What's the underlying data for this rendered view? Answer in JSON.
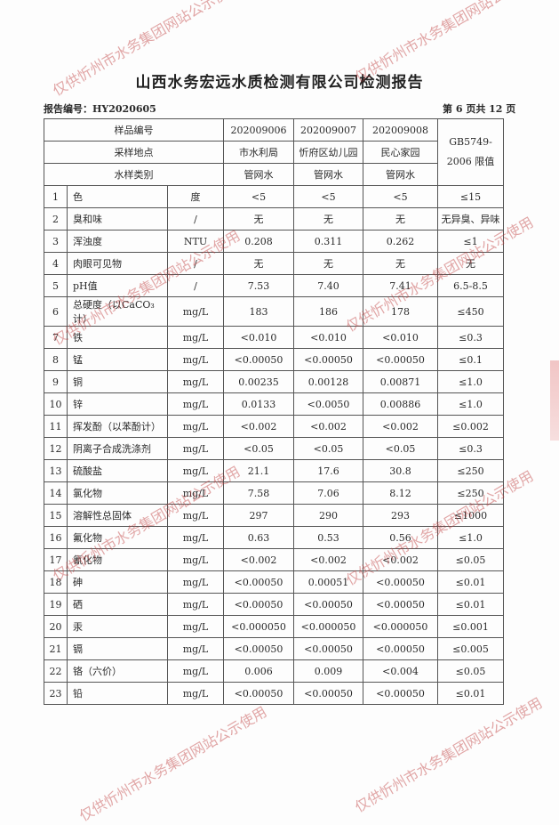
{
  "title": "山西水务宏远水质检测有限公司检测报告",
  "report_no": "报告编号：HY2020605",
  "page_no": "第 6 页共 12 页",
  "watermark": "仅供忻州市水务集团网站公示使用",
  "header": {
    "sample_no_label": "样品编号",
    "location_label": "采样地点",
    "type_label": "水样类别",
    "standard_label": "GB5749-2006 限值",
    "samples": [
      {
        "no": "202009006",
        "location": "市水利局",
        "type": "管网水"
      },
      {
        "no": "202009007",
        "location": "忻府区幼儿园",
        "type": "管网水"
      },
      {
        "no": "202009008",
        "location": "民心家园",
        "type": "管网水"
      }
    ]
  },
  "rows": [
    {
      "n": "1",
      "item": "色",
      "unit": "度",
      "v": [
        "<5",
        "<5",
        "<5"
      ],
      "limit": "≤15"
    },
    {
      "n": "2",
      "item": "臭和味",
      "unit": "/",
      "v": [
        "无",
        "无",
        "无"
      ],
      "limit": "无异臭、异味"
    },
    {
      "n": "3",
      "item": "浑浊度",
      "unit": "NTU",
      "v": [
        "0.208",
        "0.311",
        "0.262"
      ],
      "limit": "≤1"
    },
    {
      "n": "4",
      "item": "肉眼可见物",
      "unit": "/",
      "v": [
        "无",
        "无",
        "无"
      ],
      "limit": "无"
    },
    {
      "n": "5",
      "item": "pH值",
      "unit": "/",
      "v": [
        "7.53",
        "7.40",
        "7.41"
      ],
      "limit": "6.5-8.5"
    },
    {
      "n": "6",
      "item": "总硬度（以CaCO₃计）",
      "unit": "mg/L",
      "v": [
        "183",
        "186",
        "178"
      ],
      "limit": "≤450"
    },
    {
      "n": "7",
      "item": "铁",
      "unit": "mg/L",
      "v": [
        "<0.010",
        "<0.010",
        "<0.010"
      ],
      "limit": "≤0.3"
    },
    {
      "n": "8",
      "item": "锰",
      "unit": "mg/L",
      "v": [
        "<0.00050",
        "<0.00050",
        "<0.00050"
      ],
      "limit": "≤0.1"
    },
    {
      "n": "9",
      "item": "铜",
      "unit": "mg/L",
      "v": [
        "0.00235",
        "0.00128",
        "0.00871"
      ],
      "limit": "≤1.0"
    },
    {
      "n": "10",
      "item": "锌",
      "unit": "mg/L",
      "v": [
        "0.0133",
        "<0.0050",
        "0.00886"
      ],
      "limit": "≤1.0"
    },
    {
      "n": "11",
      "item": "挥发酚（以苯酚计）",
      "unit": "mg/L",
      "v": [
        "<0.002",
        "<0.002",
        "<0.002"
      ],
      "limit": "≤0.002"
    },
    {
      "n": "12",
      "item": "阴离子合成洗涤剂",
      "unit": "mg/L",
      "v": [
        "<0.05",
        "<0.05",
        "<0.05"
      ],
      "limit": "≤0.3"
    },
    {
      "n": "13",
      "item": "硫酸盐",
      "unit": "mg/L",
      "v": [
        "21.1",
        "17.6",
        "30.8"
      ],
      "limit": "≤250"
    },
    {
      "n": "14",
      "item": "氯化物",
      "unit": "mg/L",
      "v": [
        "7.58",
        "7.06",
        "8.12"
      ],
      "limit": "≤250"
    },
    {
      "n": "15",
      "item": "溶解性总固体",
      "unit": "mg/L",
      "v": [
        "297",
        "290",
        "293"
      ],
      "limit": "≤1000"
    },
    {
      "n": "16",
      "item": "氟化物",
      "unit": "mg/L",
      "v": [
        "0.63",
        "0.53",
        "0.56"
      ],
      "limit": "≤1.0"
    },
    {
      "n": "17",
      "item": "氰化物",
      "unit": "mg/L",
      "v": [
        "<0.002",
        "<0.002",
        "<0.002"
      ],
      "limit": "≤0.05"
    },
    {
      "n": "18",
      "item": "砷",
      "unit": "mg/L",
      "v": [
        "<0.00050",
        "0.00051",
        "<0.00050"
      ],
      "limit": "≤0.01"
    },
    {
      "n": "19",
      "item": "硒",
      "unit": "mg/L",
      "v": [
        "<0.00050",
        "<0.00050",
        "<0.00050"
      ],
      "limit": "≤0.01"
    },
    {
      "n": "20",
      "item": "汞",
      "unit": "mg/L",
      "v": [
        "<0.000050",
        "<0.000050",
        "<0.000050"
      ],
      "limit": "≤0.001"
    },
    {
      "n": "21",
      "item": "镉",
      "unit": "mg/L",
      "v": [
        "<0.00050",
        "<0.00050",
        "<0.00050"
      ],
      "limit": "≤0.005"
    },
    {
      "n": "22",
      "item": "铬（六价）",
      "unit": "mg/L",
      "v": [
        "0.006",
        "0.009",
        "<0.004"
      ],
      "limit": "≤0.05"
    },
    {
      "n": "23",
      "item": "铅",
      "unit": "mg/L",
      "v": [
        "<0.00050",
        "<0.00050",
        "<0.00050"
      ],
      "limit": "≤0.01"
    }
  ]
}
